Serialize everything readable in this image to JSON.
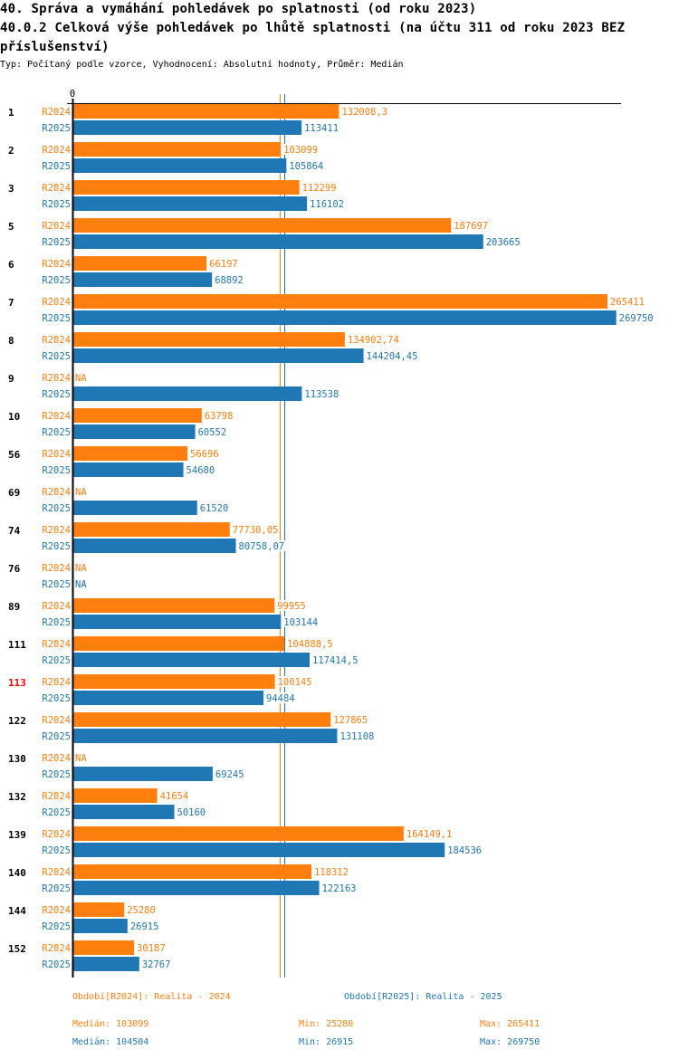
{
  "header": {
    "title_line1": "40. Správa a vymáhání pohledávek po splatnosti (od roku 2023)",
    "title_line2": "40.0.2 Celková výše pohledávek po lhůtě splatnosti (na účtu 311 od roku 2023 BEZ",
    "title_line3": "příslušenství)",
    "meta": "Typ: Počítaný podle vzorce, Vyhodnocení: Absolutní hodnoty, Průměr: Medián"
  },
  "colors": {
    "R2024": "#ff7f0e",
    "R2025": "#1f77b4",
    "highlight_category": "#ff0000",
    "axis": "#000000"
  },
  "chart_data": {
    "type": "bar",
    "orientation": "horizontal",
    "title": "40.0.2 Celková výše pohledávek po lhůtě splatnosti (na účtu 311 od roku 2023 BEZ příslušenství)",
    "xlabel": "",
    "ylabel": "",
    "x_tick_labels": [
      "0"
    ],
    "xlim": [
      0,
      272000
    ],
    "highlighted_category": "113",
    "categories": [
      "1",
      "2",
      "3",
      "5",
      "6",
      "7",
      "8",
      "9",
      "10",
      "56",
      "69",
      "74",
      "76",
      "89",
      "111",
      "113",
      "122",
      "130",
      "132",
      "139",
      "140",
      "144",
      "152"
    ],
    "series": [
      {
        "name": "R2024",
        "values": [
          132008.3,
          103099,
          112299,
          187697,
          66197,
          265411,
          134902.74,
          null,
          63798,
          56696,
          null,
          77730.05,
          null,
          99955,
          104888.5,
          100145,
          127865,
          null,
          41654,
          164149.1,
          118312,
          25280,
          30187
        ],
        "value_labels": [
          "132008,3",
          "103099",
          "112299",
          "187697",
          "66197",
          "265411",
          "134902,74",
          "NA",
          "63798",
          "56696",
          "NA",
          "77730,05",
          "NA",
          "99955",
          "104888,5",
          "100145",
          "127865",
          "NA",
          "41654",
          "164149,1",
          "118312",
          "25280",
          "30187"
        ],
        "median": 103099
      },
      {
        "name": "R2025",
        "values": [
          113411,
          105864,
          116102,
          203665,
          68892,
          269750,
          144204.45,
          113538,
          60552,
          54680,
          61520,
          80758.07,
          null,
          103144,
          117414.5,
          94484,
          131108,
          69245,
          50160,
          184536,
          122163,
          26915,
          32767
        ],
        "value_labels": [
          "113411",
          "105864",
          "116102",
          "203665",
          "68892",
          "269750",
          "144204,45",
          "113538",
          "60552",
          "54680",
          "61520",
          "80758,07",
          "NA",
          "103144",
          "117414,5",
          "94484",
          "131108",
          "69245",
          "50160",
          "184536",
          "122163",
          "26915",
          "32767"
        ],
        "median": 104504
      }
    ]
  },
  "legend": {
    "period_R2024": "Období[R2024]: Realita - 2024",
    "period_R2025": "Období[R2025]: Realita - 2025",
    "R2024": {
      "median": "Medián: 103099",
      "min": "Min: 25280",
      "max": "Max: 265411"
    },
    "R2025": {
      "median": "Medián: 104504",
      "min": "Min: 26915",
      "max": "Max: 269750"
    }
  }
}
